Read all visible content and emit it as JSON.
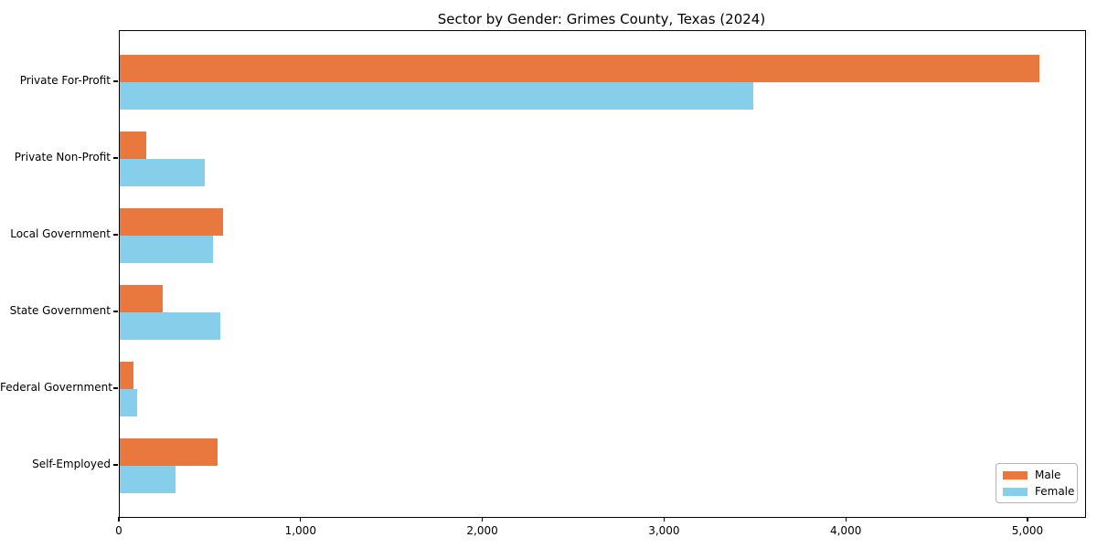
{
  "chart_data": {
    "type": "bar",
    "orientation": "horizontal",
    "title": "Sector by Gender: Grimes County, Texas (2024)",
    "categories": [
      "Private For-Profit",
      "Private Non-Profit",
      "Local Government",
      "State Government",
      "Federal Government",
      "Self-Employed"
    ],
    "series": [
      {
        "name": "Male",
        "color": "#e8783d",
        "values": [
          5060,
          145,
          570,
          235,
          75,
          540
        ]
      },
      {
        "name": "Female",
        "color": "#87ceeb",
        "values": [
          3485,
          470,
          515,
          555,
          95,
          305
        ]
      }
    ],
    "xlabel": "",
    "ylabel": "",
    "xlim": [
      0,
      5312
    ],
    "xticks": [
      0,
      1000,
      2000,
      3000,
      4000,
      5000
    ],
    "xtick_labels": [
      "0",
      "1,000",
      "2,000",
      "3,000",
      "4,000",
      "5,000"
    ],
    "grid": false,
    "legend_position": "lower right",
    "colors": {
      "male": "#e8783d",
      "female": "#87ceeb",
      "spine": "#000000",
      "background": "#ffffff"
    }
  }
}
